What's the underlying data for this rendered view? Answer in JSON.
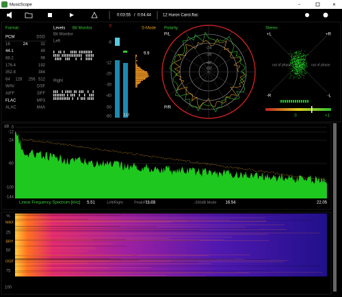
{
  "window": {
    "title": "MusicScope"
  },
  "toolbar": {
    "elapsed": "0:03:55",
    "separator": "/",
    "duration": "0:04:44",
    "file": "12 Huron Carol.flac"
  },
  "format": {
    "title": "Format",
    "rows": [
      [
        "PCM",
        "DSD"
      ],
      [
        "16",
        "24",
        "32"
      ],
      [
        "44.1",
        "48"
      ],
      [
        "88.2",
        "96"
      ],
      [
        "176.4",
        "192"
      ],
      [
        "352.8",
        "384"
      ],
      [
        "64",
        "128",
        "256",
        "512"
      ],
      [
        "WAV",
        "DSF"
      ],
      [
        "AIFF",
        "DFF"
      ],
      [
        "FLAC",
        "MP3"
      ],
      [
        "ALAC",
        "M4A"
      ]
    ]
  },
  "levels": {
    "title": "Levels",
    "tab": "Bit Monitor",
    "subtitle": "Bit Monitor",
    "left": "Left",
    "right": "Right",
    "scale": [
      "0",
      "-6",
      "-12",
      "-20",
      "-30",
      "-40",
      "-50",
      "-60"
    ],
    "mode": "S-Mode",
    "unit": "LU",
    "peak": "9.9"
  },
  "polarity": {
    "title": "Polarity",
    "top": "P/L",
    "bottom": "P/R",
    "rings": [
      "-24",
      "-36",
      "-48",
      "-60"
    ]
  },
  "stereo": {
    "title": "Stereo",
    "top_left": "+L",
    "top_right": "+R",
    "bottom_left": "-R",
    "bottom_right": "-L",
    "left_note": "out of phase",
    "right_note": "out of phase",
    "scale": [
      "0",
      "+1"
    ]
  },
  "spectrum": {
    "unit": "dB",
    "yticks": [
      "0",
      "-12",
      "-24",
      "-60",
      "-100",
      "-144"
    ],
    "xlabel": "Linear Frequency Spectrum [kHz]",
    "xticks": [
      "5.51",
      "11.03",
      "16.54",
      "22.05"
    ],
    "modes": [
      "Left/Right",
      "Peak/Phase",
      "-200dB Mode"
    ]
  },
  "spectrogram": {
    "yticks": [
      "%",
      "25",
      "50",
      "75",
      "100"
    ],
    "markers": [
      "MAX",
      "BRY",
      "OGF"
    ]
  }
}
